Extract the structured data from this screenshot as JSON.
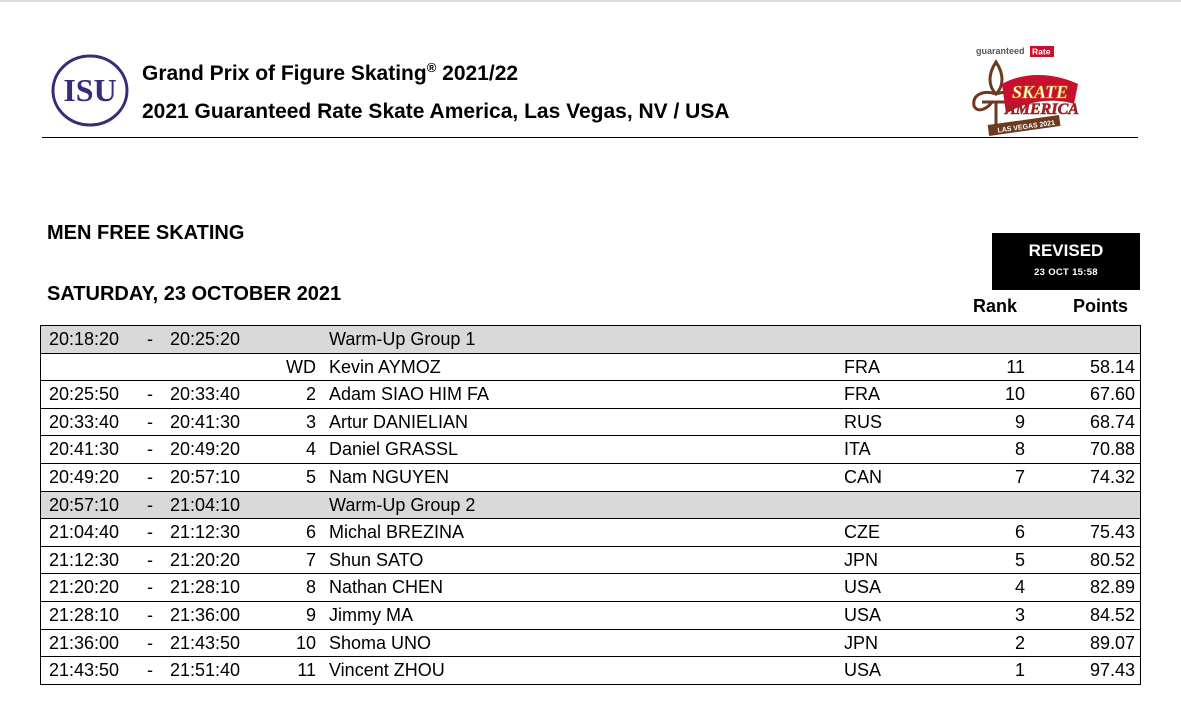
{
  "header": {
    "logo_left_text": "ISU",
    "title_line1_main": "Grand Prix of Figure Skating",
    "title_line1_reg": "®",
    "title_line1_season": " 2021/22",
    "title_line2": "2021 Guaranteed Rate Skate America, Las Vegas, NV / USA",
    "logo_right": {
      "sponsor_text": "guaranteed",
      "sponsor_box": "Rate",
      "brand_line1": "SKATE",
      "brand_line2": "AMERICA",
      "location": "LAS VEGAS 2021",
      "colors": {
        "red": "#c8102e",
        "gold": "#d4a017",
        "brown": "#6b3a1f"
      }
    }
  },
  "event": {
    "title": "MEN FREE SKATING",
    "date": "SATURDAY, 23 OCTOBER 2021"
  },
  "badge": {
    "label": "REVISED",
    "timestamp": "23 OCT 15:58"
  },
  "columns": {
    "rank": "Rank",
    "points": "Points"
  },
  "rows": [
    {
      "type": "group",
      "start": "20:18:20",
      "dash": "-",
      "end": "20:25:20",
      "label": "Warm-Up Group 1"
    },
    {
      "type": "skater",
      "start": "",
      "dash": "",
      "end": "",
      "num": "WD",
      "name": "Kevin AYMOZ",
      "nat": "FRA",
      "rank": "11",
      "points": "58.14"
    },
    {
      "type": "skater",
      "start": "20:25:50",
      "dash": "-",
      "end": "20:33:40",
      "num": "2",
      "name": "Adam SIAO HIM FA",
      "nat": "FRA",
      "rank": "10",
      "points": "67.60"
    },
    {
      "type": "skater",
      "start": "20:33:40",
      "dash": "-",
      "end": "20:41:30",
      "num": "3",
      "name": "Artur DANIELIAN",
      "nat": "RUS",
      "rank": "9",
      "points": "68.74"
    },
    {
      "type": "skater",
      "start": "20:41:30",
      "dash": "-",
      "end": "20:49:20",
      "num": "4",
      "name": "Daniel GRASSL",
      "nat": "ITA",
      "rank": "8",
      "points": "70.88"
    },
    {
      "type": "skater",
      "start": "20:49:20",
      "dash": "-",
      "end": "20:57:10",
      "num": "5",
      "name": "Nam NGUYEN",
      "nat": "CAN",
      "rank": "7",
      "points": "74.32"
    },
    {
      "type": "group",
      "start": "20:57:10",
      "dash": "-",
      "end": "21:04:10",
      "label": "Warm-Up Group 2"
    },
    {
      "type": "skater",
      "start": "21:04:40",
      "dash": "-",
      "end": "21:12:30",
      "num": "6",
      "name": "Michal BREZINA",
      "nat": "CZE",
      "rank": "6",
      "points": "75.43"
    },
    {
      "type": "skater",
      "start": "21:12:30",
      "dash": "-",
      "end": "21:20:20",
      "num": "7",
      "name": "Shun SATO",
      "nat": "JPN",
      "rank": "5",
      "points": "80.52"
    },
    {
      "type": "skater",
      "start": "21:20:20",
      "dash": "-",
      "end": "21:28:10",
      "num": "8",
      "name": "Nathan CHEN",
      "nat": "USA",
      "rank": "4",
      "points": "82.89"
    },
    {
      "type": "skater",
      "start": "21:28:10",
      "dash": "-",
      "end": "21:36:00",
      "num": "9",
      "name": "Jimmy MA",
      "nat": "USA",
      "rank": "3",
      "points": "84.52"
    },
    {
      "type": "skater",
      "start": "21:36:00",
      "dash": "-",
      "end": "21:43:50",
      "num": "10",
      "name": "Shoma UNO",
      "nat": "JPN",
      "rank": "2",
      "points": "89.07"
    },
    {
      "type": "skater",
      "start": "21:43:50",
      "dash": "-",
      "end": "21:51:40",
      "num": "11",
      "name": "Vincent ZHOU",
      "nat": "USA",
      "rank": "1",
      "points": "97.43"
    }
  ]
}
